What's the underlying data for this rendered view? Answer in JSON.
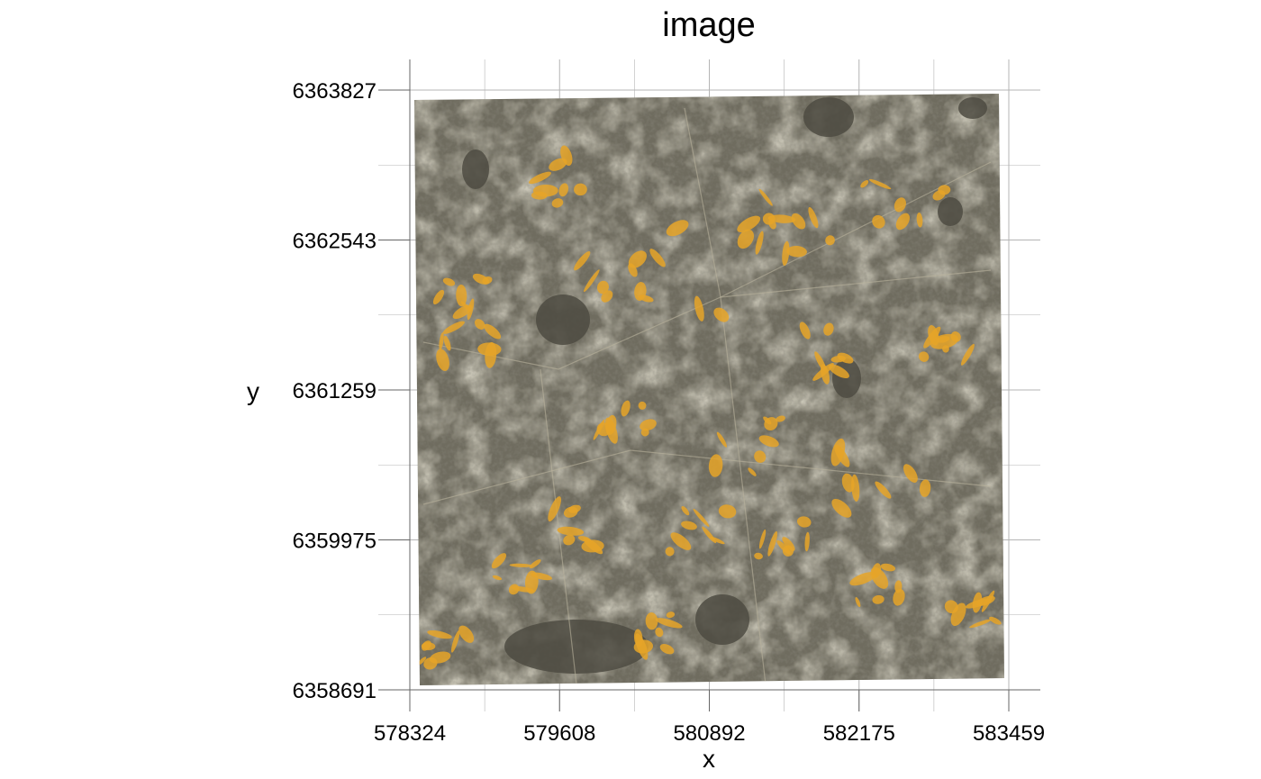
{
  "plot": {
    "title": "image",
    "xlabel": "x",
    "ylabel": "y",
    "x_ticks": [
      "578324",
      "579608",
      "580892",
      "582175",
      "583459"
    ],
    "y_ticks": [
      "6363827",
      "6362543",
      "6361259",
      "6359975",
      "6358691"
    ],
    "x_range": [
      578324,
      583459
    ],
    "y_range": [
      6358691,
      6363827
    ]
  },
  "raster": {
    "kind": "georeferenced scanned historical map",
    "base_color": "#6f6c5f",
    "light_color": "#b9b39c",
    "water_color": "#4d4b42",
    "overlay_color": "#e6a428"
  },
  "grid": {
    "on": true,
    "color": "#b4b4b4"
  }
}
